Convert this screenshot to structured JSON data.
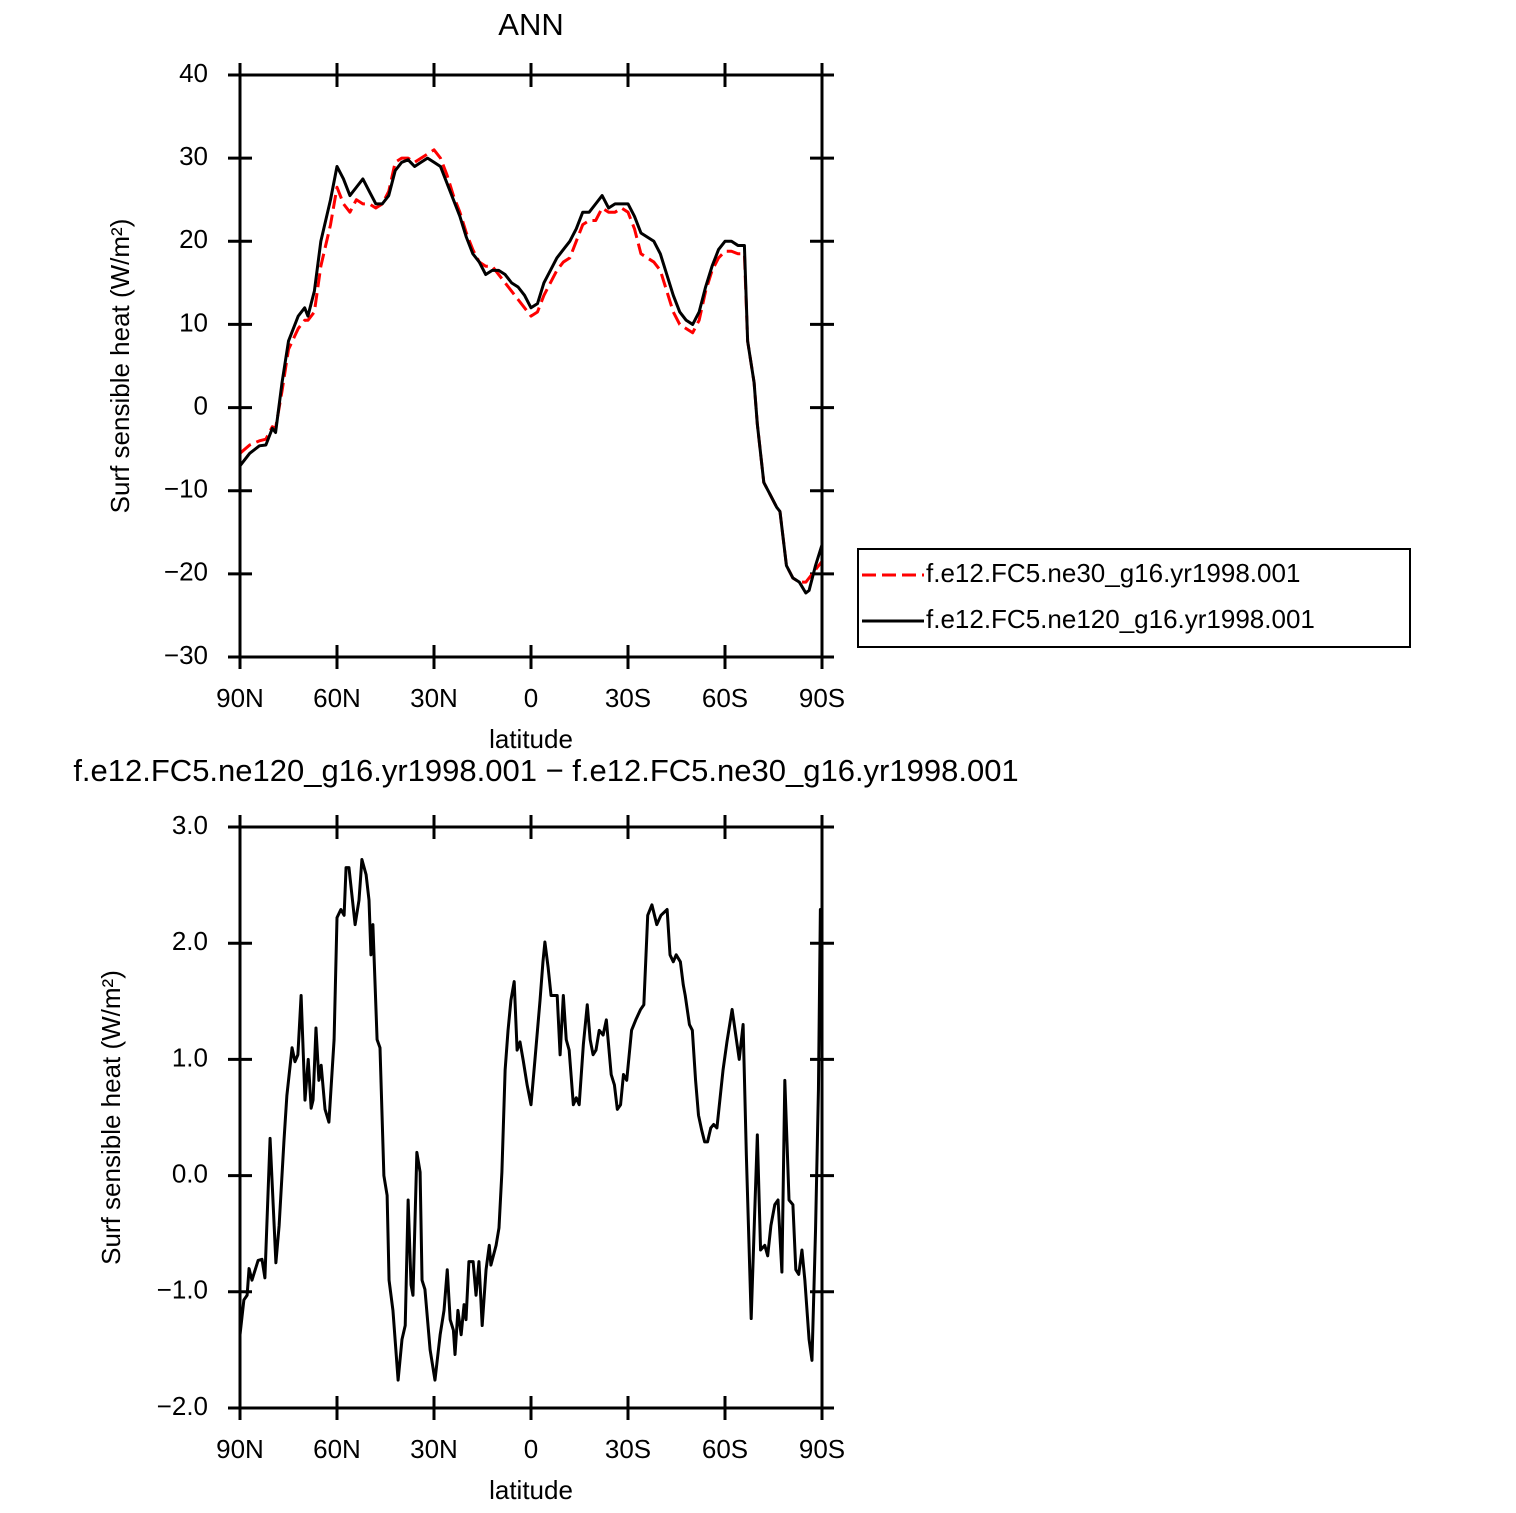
{
  "chart_data": [
    {
      "type": "line",
      "title": "ANN",
      "xlabel": "latitude",
      "ylabel": "Surf sensible heat (W/m²)",
      "x": [
        90,
        87,
        84,
        82,
        80,
        79,
        77,
        75,
        72,
        70,
        69,
        67,
        65,
        62,
        60,
        58,
        56,
        54,
        52,
        50,
        48,
        46,
        44,
        42,
        40,
        38,
        36,
        34,
        32,
        30,
        28,
        26,
        24,
        22,
        20,
        18,
        16,
        14,
        12,
        10,
        8,
        6,
        4,
        2,
        0,
        -2,
        -4,
        -6,
        -8,
        -10,
        -12,
        -14,
        -16,
        -18,
        -20,
        -22,
        -24,
        -26,
        -28,
        -30,
        -32,
        -34,
        -36,
        -38,
        -40,
        -42,
        -44,
        -46,
        -48,
        -50,
        -52,
        -54,
        -56,
        -58,
        -60,
        -62,
        -64,
        -66,
        -67,
        -69,
        -70,
        -72,
        -74,
        -76,
        -77,
        -79,
        -81,
        -83,
        -85,
        -86,
        -88,
        -90
      ],
      "series": [
        {
          "name": "f.e12.FC5.ne30_g16.yr1998.001",
          "color": "#ff0000",
          "linestyle": "dashed",
          "values": [
            -5.5,
            -4.5,
            -4,
            -3.8,
            -2.3,
            -2.5,
            2,
            7,
            9.5,
            10.5,
            10.5,
            11.5,
            17,
            22,
            26.5,
            24.5,
            23.5,
            25,
            24.5,
            24.5,
            24,
            24.5,
            26,
            29.5,
            30,
            30,
            29.5,
            30,
            30.5,
            31,
            30,
            28,
            25.5,
            23.5,
            21,
            19,
            17.5,
            17,
            17,
            16,
            15,
            14,
            13,
            12,
            11,
            11.5,
            13.5,
            15,
            16.5,
            17.5,
            18,
            20,
            22,
            22.5,
            22.5,
            24,
            23.5,
            23.5,
            24,
            23.5,
            21.5,
            18.5,
            18,
            17.5,
            16.5,
            14,
            11.5,
            10,
            9.5,
            9,
            10.5,
            14,
            16.5,
            18,
            18.8,
            18.8,
            18.5,
            18.5,
            8,
            3,
            -2,
            -9,
            -10.5,
            -12,
            -12.5,
            -19,
            -20.5,
            -21,
            -21,
            -20.5,
            -19.5,
            -18.5
          ]
        },
        {
          "name": "f.e12.FC5.ne120_g16.yr1998.001",
          "color": "#000000",
          "linestyle": "solid",
          "values": [
            -7,
            -5.5,
            -4.6,
            -4.5,
            -2.5,
            -3,
            3,
            8,
            11,
            12,
            11,
            14,
            20,
            25,
            29,
            27.5,
            25.5,
            26.5,
            27.5,
            26,
            24.5,
            24.5,
            25.5,
            28.5,
            29.5,
            29.8,
            29,
            29.5,
            30,
            29.5,
            29,
            27,
            25,
            23,
            20.5,
            18.5,
            17.5,
            16,
            16.5,
            16.5,
            16,
            15,
            14.5,
            13.5,
            12,
            12.5,
            15,
            16.5,
            18,
            19,
            20,
            21.5,
            23.5,
            23.5,
            24.5,
            25.5,
            24,
            24.5,
            24.5,
            24.5,
            23,
            21,
            20.5,
            20,
            18.5,
            16,
            13.5,
            11.5,
            10.5,
            10,
            11.5,
            14.5,
            17,
            19,
            20,
            20,
            19.5,
            19.5,
            8,
            3,
            -2,
            -9,
            -10.5,
            -12,
            -12.5,
            -19,
            -20.5,
            -21,
            -22.3,
            -22,
            -19,
            -16.5
          ]
        }
      ],
      "xlim": [
        90,
        -90
      ],
      "xticks": [
        {
          "value": 90,
          "label": "90N"
        },
        {
          "value": 60,
          "label": "60N"
        },
        {
          "value": 30,
          "label": "30N"
        },
        0,
        {
          "value": -30,
          "label": "30S"
        },
        {
          "value": -60,
          "label": "60S"
        },
        {
          "value": -90,
          "label": "90S"
        }
      ],
      "ylim": [
        -30,
        40
      ],
      "yticks": [
        {
          "value": -30,
          "label": "−30"
        },
        {
          "value": -20,
          "label": "−20"
        },
        {
          "value": -10,
          "label": "−10"
        },
        0,
        10,
        20,
        30,
        40
      ],
      "legend": "right"
    },
    {
      "type": "line",
      "title": "f.e12.FC5.ne120_g16.yr1998.001 − f.e12.FC5.ne30_g16.yr1998.001",
      "xlabel": "latitude",
      "ylabel": "Surf sensible heat (W/m²)",
      "x": [
        90,
        88.8,
        87.8,
        87.2,
        86.3,
        84.4,
        83.2,
        82.3,
        80.7,
        78.9,
        77.9,
        76.4,
        75.5,
        73.9,
        73,
        72.1,
        71.1,
        69.9,
        68.9,
        68,
        67.4,
        66.5,
        65.6,
        64.9,
        63.7,
        62.5,
        60.9,
        60,
        58.8,
        57.8,
        57.2,
        56.3,
        54.4,
        53.2,
        52.3,
        51,
        50.1,
        49.5,
        48.9,
        47.6,
        46.7,
        45.5,
        44.5,
        43.9,
        42.7,
        41.1,
        39.9,
        38.9,
        38,
        37.1,
        36.5,
        35.3,
        34.3,
        33.7,
        32.8,
        31.2,
        29.7,
        28.1,
        26.9,
        25.9,
        25,
        24,
        23.5,
        22.6,
        21.6,
        20.7,
        20.1,
        19.2,
        17.9,
        17,
        16.1,
        15.1,
        13.9,
        12.9,
        12.4,
        10.8,
        9.9,
        9,
        8,
        7.1,
        6.2,
        5.2,
        4.3,
        3.4,
        2.4,
        1.2,
        0,
        -1.2,
        -2.8,
        -3.7,
        -4.3,
        -5.3,
        -6.2,
        -8.1,
        -9,
        -10,
        -10.9,
        -11.8,
        -13.1,
        -14,
        -14.9,
        -16.2,
        -17.4,
        -18.3,
        -19.2,
        -20.1,
        -21.1,
        -22.3,
        -23.3,
        -24.8,
        -25.8,
        -26.7,
        -27.7,
        -28.6,
        -29.6,
        -31.1,
        -32.4,
        -33.9,
        -34.9,
        -36.1,
        -37.4,
        -38.9,
        -40.2,
        -42.1,
        -43,
        -44,
        -44.9,
        -46.2,
        -47.1,
        -47.7,
        -49,
        -49.9,
        -50.9,
        -51.8,
        -52.8,
        -53.7,
        -54.6,
        -55.6,
        -56.5,
        -57.5,
        -59.4,
        -60.6,
        -62.2,
        -64.4,
        -65.6,
        -66.6,
        -68.1,
        -69.1,
        -70,
        -71,
        -72.3,
        -73.2,
        -74.2,
        -75.4,
        -76.4,
        -77.6,
        -78.5,
        -79.8,
        -81,
        -81.9,
        -82.8,
        -83.8,
        -84.7,
        -86,
        -86.9,
        -88,
        -88.9,
        -89.5,
        -90
      ],
      "values": [
        -1.37,
        -1.07,
        -1.03,
        -0.8,
        -0.9,
        -0.73,
        -0.72,
        -0.88,
        0.32,
        -0.75,
        -0.43,
        0.3,
        0.69,
        1.1,
        0.98,
        1.04,
        1.55,
        0.65,
        1.0,
        0.58,
        0.65,
        1.27,
        0.82,
        0.95,
        0.57,
        0.46,
        1.17,
        2.22,
        2.29,
        2.24,
        2.65,
        2.65,
        2.16,
        2.37,
        2.72,
        2.59,
        2.37,
        1.9,
        2.16,
        1.17,
        1.1,
        0.0,
        -0.17,
        -0.9,
        -1.16,
        -1.76,
        -1.41,
        -1.29,
        -0.21,
        -0.94,
        -1.03,
        0.2,
        0.03,
        -0.9,
        -0.98,
        -1.5,
        -1.76,
        -1.37,
        -1.16,
        -0.81,
        -1.24,
        -1.33,
        -1.54,
        -1.16,
        -1.37,
        -1.11,
        -1.24,
        -0.74,
        -0.74,
        -1.03,
        -0.74,
        -1.29,
        -0.81,
        -0.6,
        -0.77,
        -0.6,
        -0.45,
        0.03,
        0.91,
        1.25,
        1.51,
        1.67,
        1.08,
        1.15,
        0.99,
        0.78,
        0.61,
        0.99,
        1.51,
        1.84,
        2.01,
        1.79,
        1.55,
        1.55,
        1.04,
        1.55,
        1.17,
        1.08,
        0.61,
        0.67,
        0.61,
        1.13,
        1.47,
        1.17,
        1.04,
        1.08,
        1.25,
        1.21,
        1.34,
        0.87,
        0.78,
        0.57,
        0.61,
        0.87,
        0.82,
        1.25,
        1.34,
        1.43,
        1.47,
        2.24,
        2.33,
        2.16,
        2.24,
        2.29,
        1.9,
        1.84,
        1.9,
        1.84,
        1.64,
        1.55,
        1.3,
        1.25,
        0.82,
        0.52,
        0.39,
        0.29,
        0.29,
        0.41,
        0.44,
        0.41,
        0.91,
        1.15,
        1.43,
        1.0,
        1.3,
        0.18,
        -1.23,
        -0.39,
        0.35,
        -0.64,
        -0.6,
        -0.69,
        -0.43,
        -0.25,
        -0.21,
        -0.83,
        0.82,
        -0.21,
        -0.25,
        -0.81,
        -0.85,
        -0.64,
        -0.9,
        -1.41,
        -1.59,
        -0.47,
        0.74,
        2.29,
        1.75
      ],
      "color": "#000000",
      "linestyle": "solid",
      "xlim": [
        90,
        -90
      ],
      "xticks": [
        {
          "value": 90,
          "label": "90N"
        },
        {
          "value": 60,
          "label": "60N"
        },
        {
          "value": 30,
          "label": "30N"
        },
        0,
        {
          "value": -30,
          "label": "30S"
        },
        {
          "value": -60,
          "label": "60S"
        },
        {
          "value": -90,
          "label": "90S"
        }
      ],
      "ylim": [
        -2,
        3
      ],
      "yticks": [
        {
          "value": -2,
          "label": "−2.0"
        },
        {
          "value": -1,
          "label": "−1.0"
        },
        {
          "value": 0,
          "label": "0.0"
        },
        {
          "value": 1,
          "label": "1.0"
        },
        {
          "value": 2,
          "label": "2.0"
        },
        {
          "value": 3,
          "label": "3.0"
        }
      ]
    }
  ]
}
